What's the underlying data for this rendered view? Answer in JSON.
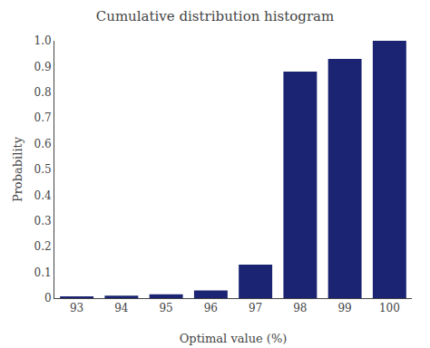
{
  "chart_data": {
    "type": "bar",
    "title": "Cumulative distribution histogram",
    "xlabel": "Optimal value (%)",
    "ylabel": "Probability",
    "categories": [
      93,
      94,
      95,
      96,
      97,
      98,
      99,
      100
    ],
    "values": [
      0.005,
      0.01,
      0.015,
      0.03,
      0.13,
      0.88,
      0.93,
      1.0
    ],
    "color": "#1a2472",
    "ylim": [
      0,
      1.0
    ],
    "yticks": [
      0,
      0.1,
      0.2,
      0.3,
      0.4,
      0.5,
      0.6,
      0.7,
      0.8,
      0.9,
      {
        "value": 1.0,
        "label": "1.0"
      }
    ],
    "grid": false
  }
}
